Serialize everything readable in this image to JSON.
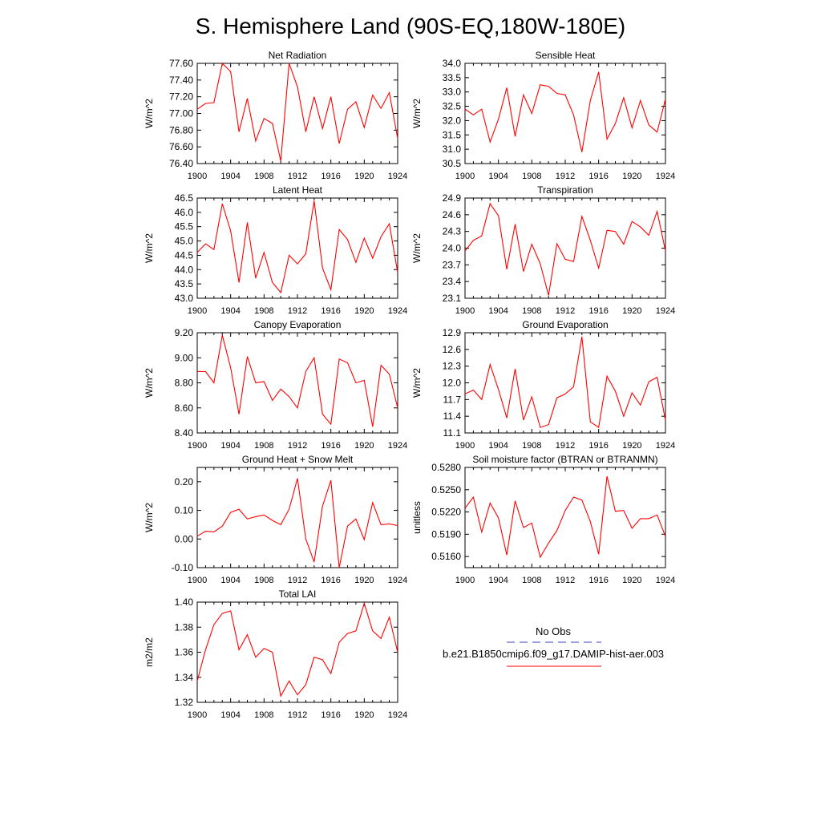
{
  "page_title": "S. Hemisphere Land (90S-EQ,180W-180E)",
  "legend": {
    "obs_label": "No Obs",
    "model_label": "b.e21.B1850cmip6.f09_g17.DAMIP-hist-aer.003",
    "obs_color": "#3c3cc8",
    "model_color": "#ff0000"
  },
  "chart_data": [
    {
      "type": "line",
      "title": "Net Radiation",
      "ylabel": "W/m^2",
      "x": [
        1900,
        1901,
        1902,
        1903,
        1904,
        1905,
        1906,
        1907,
        1908,
        1909,
        1910,
        1911,
        1912,
        1913,
        1914,
        1915,
        1916,
        1917,
        1918,
        1919,
        1920,
        1921,
        1922,
        1923,
        1924
      ],
      "values": [
        77.05,
        77.12,
        77.13,
        77.6,
        77.5,
        76.78,
        77.18,
        76.67,
        76.94,
        76.88,
        76.43,
        77.6,
        77.32,
        76.78,
        77.2,
        76.82,
        77.2,
        76.64,
        77.05,
        77.14,
        76.83,
        77.22,
        77.06,
        77.25,
        76.7
      ],
      "ylim": [
        76.4,
        77.6
      ],
      "yticks": [
        "76.40",
        "76.60",
        "76.80",
        "77.00",
        "77.20",
        "77.40",
        "77.60"
      ],
      "xticks": [
        "1900",
        "1904",
        "1908",
        "1912",
        "1916",
        "1920",
        "1924"
      ],
      "xlim": [
        1900,
        1924
      ]
    },
    {
      "type": "line",
      "title": "Sensible Heat",
      "ylabel": "W/m^2",
      "x": [
        1900,
        1901,
        1902,
        1903,
        1904,
        1905,
        1906,
        1907,
        1908,
        1909,
        1910,
        1911,
        1912,
        1913,
        1914,
        1915,
        1916,
        1917,
        1918,
        1919,
        1920,
        1921,
        1922,
        1923,
        1924
      ],
      "values": [
        32.4,
        32.2,
        32.4,
        31.25,
        32.05,
        33.15,
        31.45,
        32.9,
        32.25,
        33.25,
        33.2,
        32.95,
        32.9,
        32.2,
        30.9,
        32.7,
        33.7,
        31.35,
        31.9,
        32.8,
        31.75,
        32.7,
        31.85,
        31.6,
        32.75
      ],
      "ylim": [
        30.5,
        34.0
      ],
      "yticks": [
        "30.5",
        "31.0",
        "31.5",
        "32.0",
        "32.5",
        "33.0",
        "33.5",
        "34.0"
      ],
      "xticks": [
        "1900",
        "1904",
        "1908",
        "1912",
        "1916",
        "1920",
        "1924"
      ],
      "xlim": [
        1900,
        1924
      ]
    },
    {
      "type": "line",
      "title": "Latent Heat",
      "ylabel": "W/m^2",
      "x": [
        1900,
        1901,
        1902,
        1903,
        1904,
        1905,
        1906,
        1907,
        1908,
        1909,
        1910,
        1911,
        1912,
        1913,
        1914,
        1915,
        1916,
        1917,
        1918,
        1919,
        1920,
        1921,
        1922,
        1923,
        1924
      ],
      "values": [
        44.6,
        44.9,
        44.7,
        46.3,
        45.35,
        43.55,
        45.65,
        43.7,
        44.6,
        43.55,
        43.2,
        44.5,
        44.2,
        44.55,
        46.4,
        44.05,
        43.3,
        45.4,
        45.05,
        44.25,
        45.1,
        44.4,
        45.15,
        45.6,
        43.9
      ],
      "ylim": [
        43.0,
        46.5
      ],
      "yticks": [
        "43.0",
        "43.5",
        "44.0",
        "44.5",
        "45.0",
        "45.5",
        "46.0",
        "46.5"
      ],
      "xticks": [
        "1900",
        "1904",
        "1908",
        "1912",
        "1916",
        "1920",
        "1924"
      ],
      "xlim": [
        1900,
        1924
      ]
    },
    {
      "type": "line",
      "title": "Transpiration",
      "ylabel": "W/m^2",
      "x": [
        1900,
        1901,
        1902,
        1903,
        1904,
        1905,
        1906,
        1907,
        1908,
        1909,
        1910,
        1911,
        1912,
        1913,
        1914,
        1915,
        1916,
        1917,
        1918,
        1919,
        1920,
        1921,
        1922,
        1923,
        1924
      ],
      "values": [
        23.95,
        24.14,
        24.22,
        24.8,
        24.58,
        23.62,
        24.43,
        23.58,
        24.07,
        23.72,
        23.15,
        24.08,
        23.8,
        23.76,
        24.57,
        24.14,
        23.64,
        24.32,
        24.3,
        24.07,
        24.48,
        24.38,
        24.23,
        24.66,
        23.95
      ],
      "ylim": [
        23.1,
        24.9
      ],
      "yticks": [
        "23.1",
        "23.4",
        "23.7",
        "24.0",
        "24.3",
        "24.6",
        "24.9"
      ],
      "xticks": [
        "1900",
        "1904",
        "1908",
        "1912",
        "1916",
        "1920",
        "1924"
      ],
      "xlim": [
        1900,
        1924
      ]
    },
    {
      "type": "line",
      "title": "Canopy Evaporation",
      "ylabel": "W/m^2",
      "x": [
        1900,
        1901,
        1902,
        1903,
        1904,
        1905,
        1906,
        1907,
        1908,
        1909,
        1910,
        1911,
        1912,
        1913,
        1914,
        1915,
        1916,
        1917,
        1918,
        1919,
        1920,
        1921,
        1922,
        1923,
        1924
      ],
      "values": [
        8.89,
        8.89,
        8.8,
        9.18,
        8.92,
        8.55,
        9.01,
        8.8,
        8.81,
        8.66,
        8.75,
        8.69,
        8.6,
        8.89,
        9.0,
        8.55,
        8.47,
        8.99,
        8.96,
        8.8,
        8.82,
        8.45,
        8.94,
        8.87,
        8.6
      ],
      "ylim": [
        8.4,
        9.2
      ],
      "yticks": [
        "8.40",
        "8.60",
        "8.80",
        "9.00",
        "9.20"
      ],
      "xticks": [
        "1900",
        "1904",
        "1908",
        "1912",
        "1916",
        "1920",
        "1924"
      ],
      "xlim": [
        1900,
        1924
      ]
    },
    {
      "type": "line",
      "title": "Ground Evaporation",
      "ylabel": "W/m^2",
      "x": [
        1900,
        1901,
        1902,
        1903,
        1904,
        1905,
        1906,
        1907,
        1908,
        1909,
        1910,
        1911,
        1912,
        1913,
        1914,
        1915,
        1916,
        1917,
        1918,
        1919,
        1920,
        1921,
        1922,
        1923,
        1924
      ],
      "values": [
        11.8,
        11.87,
        11.7,
        12.33,
        11.88,
        11.37,
        12.25,
        11.33,
        11.75,
        11.2,
        11.25,
        11.73,
        11.8,
        11.93,
        12.83,
        11.3,
        11.2,
        12.12,
        11.85,
        11.4,
        11.82,
        11.6,
        12.02,
        12.1,
        11.33
      ],
      "ylim": [
        11.1,
        12.9
      ],
      "yticks": [
        "11.1",
        "11.4",
        "11.7",
        "12.0",
        "12.3",
        "12.6",
        "12.9"
      ],
      "xticks": [
        "1900",
        "1904",
        "1908",
        "1912",
        "1916",
        "1920",
        "1924"
      ],
      "xlim": [
        1900,
        1924
      ]
    },
    {
      "type": "line",
      "title": "Ground Heat + Snow Melt",
      "ylabel": "W/m^2",
      "x": [
        1900,
        1901,
        1902,
        1903,
        1904,
        1905,
        1906,
        1907,
        1908,
        1909,
        1910,
        1911,
        1912,
        1913,
        1914,
        1915,
        1916,
        1917,
        1918,
        1919,
        1920,
        1921,
        1922,
        1923,
        1924
      ],
      "values": [
        0.01,
        0.027,
        0.025,
        0.045,
        0.093,
        0.104,
        0.07,
        0.078,
        0.084,
        0.065,
        0.05,
        0.104,
        0.212,
        0.0,
        -0.08,
        0.115,
        0.205,
        -0.1,
        0.045,
        0.07,
        -0.002,
        0.127,
        0.05,
        0.053,
        0.047
      ],
      "ylim": [
        -0.1,
        0.25
      ],
      "yticks": [
        "-0.10",
        "0.00",
        "0.10",
        "0.20"
      ],
      "xticks": [
        "1900",
        "1904",
        "1908",
        "1912",
        "1916",
        "1920",
        "1924"
      ],
      "xlim": [
        1900,
        1924
      ]
    },
    {
      "type": "line",
      "title": "Soil moisture factor (BTRAN or BTRANMN)",
      "ylabel": "unitless",
      "x": [
        1900,
        1901,
        1902,
        1903,
        1904,
        1905,
        1906,
        1907,
        1908,
        1909,
        1910,
        1911,
        1912,
        1913,
        1914,
        1915,
        1916,
        1917,
        1918,
        1919,
        1920,
        1921,
        1922,
        1923,
        1924
      ],
      "values": [
        0.5225,
        0.524,
        0.5193,
        0.5232,
        0.5212,
        0.5162,
        0.5235,
        0.5199,
        0.5205,
        0.5159,
        0.5178,
        0.5195,
        0.5222,
        0.524,
        0.5236,
        0.5207,
        0.5163,
        0.5268,
        0.5221,
        0.5222,
        0.5198,
        0.5211,
        0.5211,
        0.5216,
        0.5187
      ],
      "ylim": [
        0.5145,
        0.528
      ],
      "yticks": [
        "0.5160",
        "0.5190",
        "0.5220",
        "0.5250",
        "0.5280"
      ],
      "xticks": [
        "1900",
        "1904",
        "1908",
        "1912",
        "1916",
        "1920",
        "1924"
      ],
      "xlim": [
        1900,
        1924
      ]
    },
    {
      "type": "line",
      "title": "Total LAI",
      "ylabel": "m2/m2",
      "x": [
        1900,
        1901,
        1902,
        1903,
        1904,
        1905,
        1906,
        1907,
        1908,
        1909,
        1910,
        1911,
        1912,
        1913,
        1914,
        1915,
        1916,
        1917,
        1918,
        1919,
        1920,
        1921,
        1922,
        1923,
        1924
      ],
      "values": [
        1.337,
        1.362,
        1.382,
        1.391,
        1.393,
        1.362,
        1.374,
        1.356,
        1.363,
        1.36,
        1.325,
        1.337,
        1.326,
        1.334,
        1.356,
        1.354,
        1.343,
        1.368,
        1.375,
        1.377,
        1.399,
        1.377,
        1.371,
        1.388,
        1.36
      ],
      "ylim": [
        1.32,
        1.4
      ],
      "yticks": [
        "1.32",
        "1.34",
        "1.36",
        "1.38",
        "1.40"
      ],
      "xticks": [
        "1900",
        "1904",
        "1908",
        "1912",
        "1916",
        "1920",
        "1924"
      ],
      "xlim": [
        1900,
        1924
      ]
    }
  ]
}
